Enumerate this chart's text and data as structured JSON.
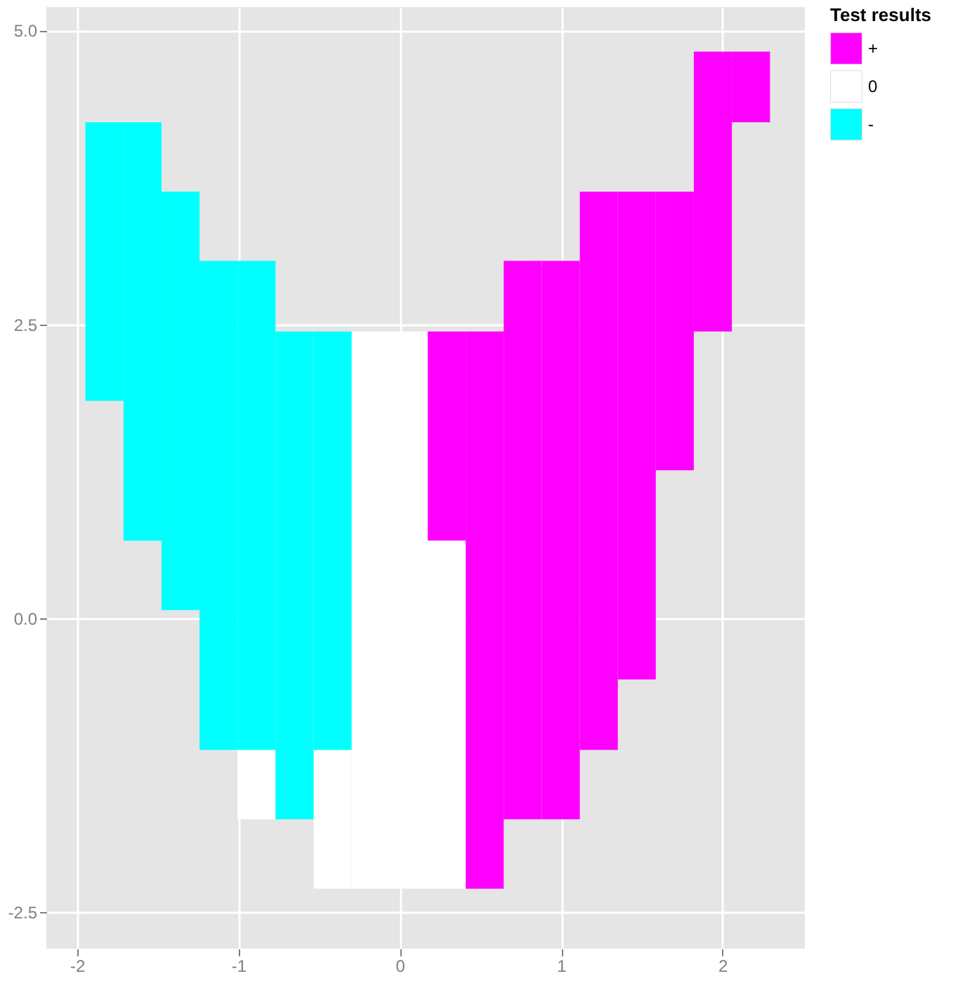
{
  "chart_data": {
    "type": "bar",
    "x": [
      -1.83,
      -1.594,
      -1.359,
      -1.123,
      -0.888,
      -0.652,
      -0.416,
      -0.181,
      0.055,
      0.291,
      0.526,
      0.762,
      0.998,
      1.233,
      1.469,
      1.704,
      1.94,
      2.176
    ],
    "series": [
      {
        "name": "+",
        "color": "#ff00ff",
        "values": [
          null,
          null,
          null,
          null,
          null,
          null,
          null,
          null,
          null,
          1.78,
          4.74,
          4.75,
          4.75,
          4.75,
          4.15,
          2.37,
          2.38,
          0.6
        ],
        "base": [
          null,
          null,
          null,
          null,
          null,
          null,
          null,
          null,
          null,
          0.66,
          -2.3,
          -1.71,
          -1.71,
          -1.12,
          -0.52,
          1.26,
          2.44,
          4.22
        ]
      },
      {
        "name": "0",
        "color": "#ffffff",
        "values": [
          null,
          null,
          null,
          null,
          0.59,
          null,
          1.18,
          4.74,
          4.74,
          2.96,
          null,
          null,
          null,
          null,
          null,
          null,
          null,
          null
        ],
        "base": [
          null,
          null,
          null,
          null,
          -1.71,
          null,
          -2.3,
          -2.3,
          -2.3,
          -2.3,
          null,
          null,
          null,
          null,
          null,
          null,
          null,
          null
        ]
      },
      {
        "name": "-",
        "color": "#00ffff",
        "values": [
          2.37,
          3.56,
          3.56,
          4.16,
          4.16,
          4.15,
          3.56,
          null,
          null,
          null,
          null,
          null,
          null,
          null,
          null,
          null,
          null,
          null
        ],
        "base": [
          1.85,
          0.66,
          0.07,
          -1.12,
          -1.12,
          -1.71,
          -1.12,
          null,
          null,
          null,
          null,
          null,
          null,
          null,
          null,
          null,
          null,
          null
        ]
      }
    ],
    "legend_title": "Test results",
    "legend": "right",
    "xlim": [
      -2.19,
      2.51
    ],
    "xticks": [
      -2,
      -1,
      0,
      1,
      2
    ],
    "ylim": [
      -2.81,
      5.2
    ],
    "yticks": [
      {
        "value": -2.5,
        "label": "-2.5"
      },
      {
        "value": 0,
        "label": "0.0"
      },
      {
        "value": 2.5,
        "label": "2.5"
      },
      {
        "value": 5,
        "label": "5.0"
      }
    ],
    "grid": true
  }
}
